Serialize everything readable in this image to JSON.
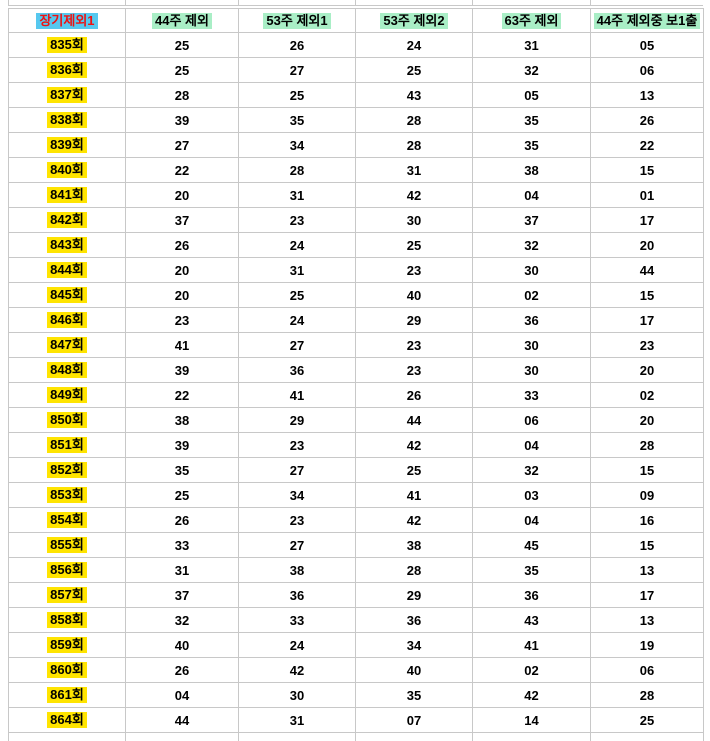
{
  "colors": {
    "header_label_highlight_blue": "#56c8ef",
    "header_label_red_text": "#ee1111",
    "header_highlight_green": "#a9eec6",
    "row_label_highlight_yellow": "#ffe400",
    "alert_value_red": "#e01010",
    "grid_border": "#c8c8c8",
    "background": "#ffffff"
  },
  "table": {
    "headers": [
      "장기제외1",
      "44주 제외",
      "53주 제외1",
      "53주 제외2",
      "63주 제외",
      "44주 제외중 보1출"
    ],
    "rows": [
      {
        "label": "835회",
        "values": [
          "25",
          "26",
          "24",
          "31",
          "05"
        ],
        "red": []
      },
      {
        "label": "836회",
        "values": [
          "25",
          "27",
          "25",
          "32",
          "06"
        ],
        "red": []
      },
      {
        "label": "837회",
        "values": [
          "28",
          "25",
          "43",
          "05",
          "13"
        ],
        "red": [
          0,
          1
        ]
      },
      {
        "label": "838회",
        "values": [
          "39",
          "35",
          "28",
          "35",
          "26"
        ],
        "red": []
      },
      {
        "label": "839회",
        "values": [
          "27",
          "34",
          "28",
          "35",
          "22"
        ],
        "red": []
      },
      {
        "label": "840회",
        "values": [
          "22",
          "28",
          "31",
          "38",
          "15"
        ],
        "red": [
          1
        ]
      },
      {
        "label": "841회",
        "values": [
          "20",
          "31",
          "42",
          "04",
          "01"
        ],
        "red": []
      },
      {
        "label": "842회",
        "values": [
          "37",
          "23",
          "30",
          "37",
          "17"
        ],
        "red": []
      },
      {
        "label": "843회",
        "values": [
          "26",
          "24",
          "25",
          "32",
          "20"
        ],
        "red": []
      },
      {
        "label": "844회",
        "values": [
          "20",
          "31",
          "23",
          "30",
          "44"
        ],
        "red": []
      },
      {
        "label": "845회",
        "values": [
          "20",
          "25",
          "40",
          "02",
          "15"
        ],
        "red": [
          2
        ]
      },
      {
        "label": "846회",
        "values": [
          "23",
          "24",
          "29",
          "36",
          "17"
        ],
        "red": []
      },
      {
        "label": "847회",
        "values": [
          "41",
          "27",
          "23",
          "30",
          "23"
        ],
        "red": [
          3
        ]
      },
      {
        "label": "848회",
        "values": [
          "39",
          "36",
          "23",
          "30",
          "20"
        ],
        "red": [
          0
        ]
      },
      {
        "label": "849회",
        "values": [
          "22",
          "41",
          "26",
          "33",
          "02"
        ],
        "red": []
      },
      {
        "label": "850회",
        "values": [
          "38",
          "29",
          "44",
          "06",
          "20"
        ],
        "red": [
          4
        ]
      },
      {
        "label": "851회",
        "values": [
          "39",
          "23",
          "42",
          "04",
          "28"
        ],
        "red": []
      },
      {
        "label": "852회",
        "values": [
          "35",
          "27",
          "25",
          "32",
          "15"
        ],
        "red": [
          0
        ]
      },
      {
        "label": "853회",
        "values": [
          "25",
          "34",
          "41",
          "03",
          "09"
        ],
        "red": []
      },
      {
        "label": "854회",
        "values": [
          "26",
          "23",
          "42",
          "04",
          "16"
        ],
        "red": []
      },
      {
        "label": "855회",
        "values": [
          "33",
          "27",
          "38",
          "45",
          "15"
        ],
        "red": [
          4
        ]
      },
      {
        "label": "856회",
        "values": [
          "31",
          "38",
          "28",
          "35",
          "13"
        ],
        "red": []
      },
      {
        "label": "857회",
        "values": [
          "37",
          "36",
          "29",
          "36",
          "17"
        ],
        "red": []
      },
      {
        "label": "858회",
        "values": [
          "32",
          "33",
          "36",
          "43",
          "13"
        ],
        "red": [
          0,
          3,
          4
        ]
      },
      {
        "label": "859회",
        "values": [
          "40",
          "24",
          "34",
          "41",
          "19"
        ],
        "red": [
          3
        ]
      },
      {
        "label": "860회",
        "values": [
          "26",
          "42",
          "40",
          "02",
          "06"
        ],
        "red": []
      },
      {
        "label": "861회",
        "values": [
          "04",
          "30",
          "35",
          "42",
          "28"
        ],
        "red": []
      },
      {
        "label": "864회",
        "values": [
          "44",
          "31",
          "07",
          "14",
          "25"
        ],
        "red": []
      }
    ]
  }
}
